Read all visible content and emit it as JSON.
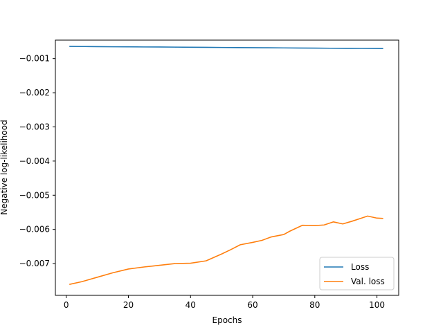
{
  "chart_data": {
    "type": "line",
    "title": "",
    "xlabel": "Epochs",
    "ylabel": "Negative log-likelihood",
    "xlim": [
      -3.5,
      107
    ],
    "ylim": [
      -0.00793,
      -0.00046
    ],
    "xticks": [
      0,
      20,
      40,
      60,
      80,
      100
    ],
    "xtick_labels": [
      "0",
      "20",
      "40",
      "60",
      "80",
      "100"
    ],
    "yticks": [
      -0.001,
      -0.002,
      -0.003,
      -0.004,
      -0.005,
      -0.006,
      -0.007
    ],
    "ytick_labels": [
      "−0.001",
      "−0.002",
      "−0.003",
      "−0.004",
      "−0.005",
      "−0.006",
      "−0.007"
    ],
    "grid": false,
    "legend_position": "lower-right",
    "series": [
      {
        "name": "Loss",
        "color": "#1f77b4",
        "x": [
          1,
          5,
          10,
          15,
          20,
          25,
          30,
          35,
          40,
          45,
          50,
          55,
          60,
          65,
          70,
          75,
          80,
          85,
          90,
          95,
          100,
          102
        ],
        "y": [
          -0.000644,
          -0.000647,
          -0.000652,
          -0.000655,
          -0.000657,
          -0.00066,
          -0.000662,
          -0.000665,
          -0.000668,
          -0.000671,
          -0.000675,
          -0.000678,
          -0.000681,
          -0.000684,
          -0.000688,
          -0.000692,
          -0.000695,
          -0.000698,
          -0.000701,
          -0.000703,
          -0.000705,
          -0.000706
        ]
      },
      {
        "name": "Val. loss",
        "color": "#ff7f0e",
        "x": [
          1,
          5,
          10,
          15,
          20,
          25,
          28,
          32,
          35,
          40,
          45,
          50,
          53,
          56,
          60,
          63,
          66,
          70,
          72,
          76,
          80,
          83,
          86,
          89,
          92,
          95,
          97,
          100,
          102
        ],
        "y": [
          -0.00761,
          -0.00753,
          -0.0074,
          -0.00727,
          -0.00716,
          -0.0071,
          -0.00707,
          -0.00703,
          -0.007,
          -0.00699,
          -0.00692,
          -0.00672,
          -0.00659,
          -0.00645,
          -0.00638,
          -0.00632,
          -0.00622,
          -0.00615,
          -0.00605,
          -0.00588,
          -0.00589,
          -0.00587,
          -0.00578,
          -0.00584,
          -0.00576,
          -0.00567,
          -0.00561,
          -0.00567,
          -0.00568
        ]
      }
    ]
  }
}
